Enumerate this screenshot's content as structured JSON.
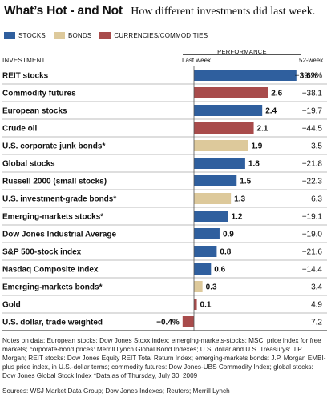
{
  "header": {
    "title": "What’s Hot - and Not",
    "subtitle": "How different investments did last week."
  },
  "legend": [
    {
      "label": "STOCKS",
      "color": "#2f5f9e"
    },
    {
      "label": "BONDS",
      "color": "#ddc99b"
    },
    {
      "label": "CURRENCIES/COMMODITIES",
      "color": "#a84b4b"
    }
  ],
  "columns": {
    "group": "PERFORMANCE",
    "investment": "INVESTMENT",
    "last_week": "Last week",
    "week52": "52-week"
  },
  "chart_data": {
    "type": "bar",
    "orientation": "horizontal",
    "value_unit": "%",
    "categories": [
      "REIT stocks",
      "Commodity futures",
      "European stocks",
      "Crude oil",
      "U.S. corporate junk bonds*",
      "Global stocks",
      "Russell 2000 (small stocks)",
      "U.S. investment-grade bonds*",
      "Emerging-markets stocks*",
      "Dow Jones Industrial Average",
      "S&P 500-stock index",
      "Nasdaq Composite Index",
      "Emerging-markets bonds*",
      "Gold",
      "U.S. dollar, trade weighted"
    ],
    "groups": [
      "stocks",
      "commodities",
      "stocks",
      "commodities",
      "bonds",
      "stocks",
      "stocks",
      "bonds",
      "stocks",
      "stocks",
      "stocks",
      "stocks",
      "bonds",
      "commodities",
      "commodities"
    ],
    "values": [
      3.6,
      2.6,
      2.4,
      2.1,
      1.9,
      1.8,
      1.5,
      1.3,
      1.2,
      0.9,
      0.8,
      0.6,
      0.3,
      0.1,
      -0.4
    ],
    "value_labels": [
      "3.6%",
      "2.6",
      "2.4",
      "2.1",
      "1.9",
      "1.8",
      "1.5",
      "1.3",
      "1.2",
      "0.9",
      "0.8",
      "0.6",
      "0.3",
      "0.1",
      "−0.4%"
    ],
    "week52": [
      "−39.2%",
      "−38.1",
      "−19.7",
      "−44.5",
      "3.5",
      "−21.8",
      "−22.3",
      "6.3",
      "−19.1",
      "−19.0",
      "−21.6",
      "−14.4",
      "3.4",
      "4.9",
      "7.2"
    ],
    "colors": {
      "stocks": "#2f5f9e",
      "bonds": "#ddc99b",
      "commodities": "#a84b4b"
    }
  },
  "notes": "Notes on data: European stocks: Dow Jones Stoxx index; emerging-markets-stocks: MSCI price index for free markets; corporate-bond prices: Merrill Lynch Global Bond Indexes; U.S. dollar and U.S. Treasurys: J.P. Morgan; REIT stocks: Dow Jones Equity REIT Total Return Index; emerging-markets bonds: J.P. Morgan EMBI-plus price index, in U.S.-dollar terms; commodity futures: Dow Jones-UBS Commodity Index; global stocks: Dow Jones Global Stock Index  *Data as of Thursday, July 30, 2009",
  "sources": "Sources: WSJ Market Data Group; Dow Jones Indexes; Reuters; Merrill Lynch"
}
